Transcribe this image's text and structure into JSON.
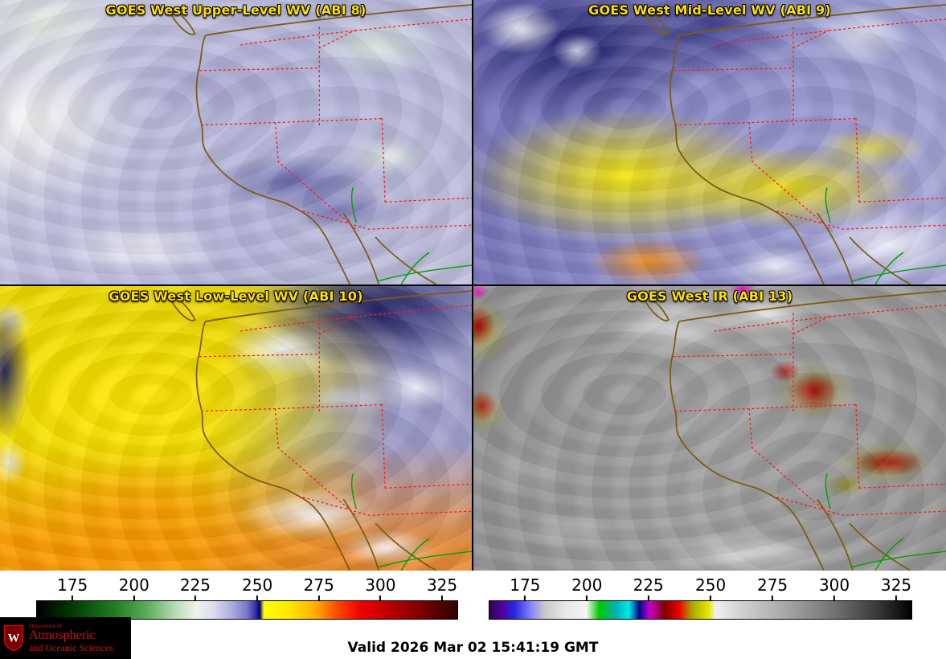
{
  "panels": [
    {
      "title": "GOES West Upper-Level WV (ABI 8)"
    },
    {
      "title": "GOES West Mid-Level WV (ABI 9)"
    },
    {
      "title": "GOES West Low-Level WV (ABI 10)"
    },
    {
      "title": "GOES West IR (ABI 13)"
    }
  ],
  "colorbars": {
    "wv": {
      "name": "water-vapor-brightness-temperature-scale",
      "ticks": [
        "175",
        "200",
        "225",
        "250",
        "275",
        "300",
        "325"
      ]
    },
    "ir": {
      "name": "infrared-brightness-temperature-scale",
      "ticks": [
        "175",
        "200",
        "225",
        "250",
        "275",
        "300",
        "325"
      ]
    }
  },
  "footer": {
    "valid_time": "Valid 2026 Mar 02 15:41:19 GMT",
    "logo": {
      "crest_letter": "W",
      "line1": "Department of",
      "line2": "Atmospheric",
      "line3": "and Oceanic Sciences"
    }
  },
  "colors": {
    "title_text": "#ffdf00",
    "state_border": "#ff1a1a",
    "coastline": "#7d5c12",
    "river": "#00a000",
    "logo_red": "#cc1111",
    "logo_bg": "#000000",
    "valid_text": "#000000"
  }
}
